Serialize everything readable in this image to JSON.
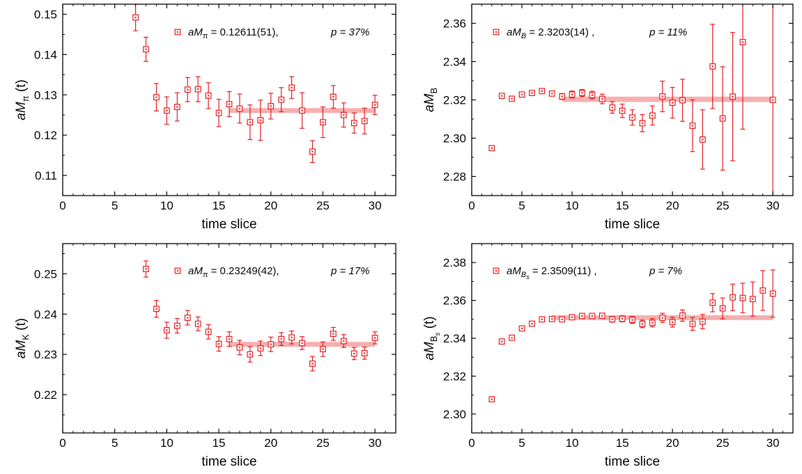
{
  "colors": {
    "points": "#e41a1c",
    "band": "#f4a6a6",
    "axis": "#000000"
  },
  "chart_data": [
    {
      "type": "scatter",
      "xlabel": "time slice",
      "ylabel": {
        "main": "aM",
        "sub": "π",
        "suffix": " (t)"
      },
      "legend": {
        "main": "aM",
        "sub": "π",
        "value": " = 0.12611(51),",
        "p": "p = 37%"
      },
      "xlim": [
        0,
        32
      ],
      "ylim": [
        0.105,
        0.1525
      ],
      "xticks": [
        0,
        5,
        10,
        15,
        20,
        25,
        30
      ],
      "xtick_labels": [
        "0",
        "5",
        "10",
        "15",
        "20",
        "25",
        "30"
      ],
      "yticks": [
        0.11,
        0.12,
        0.13,
        0.14,
        0.15
      ],
      "ytick_labels": [
        "0.11",
        "0.12",
        "0.13",
        "0.14",
        "0.15"
      ],
      "fit": {
        "value": 0.12611,
        "error": 0.00051,
        "xrange": [
          16,
          30
        ]
      },
      "points": [
        {
          "x": 7,
          "y": 0.1492,
          "err": 0.0033
        },
        {
          "x": 8,
          "y": 0.1413,
          "err": 0.003
        },
        {
          "x": 9,
          "y": 0.1294,
          "err": 0.0034
        },
        {
          "x": 10,
          "y": 0.1261,
          "err": 0.0034
        },
        {
          "x": 11,
          "y": 0.127,
          "err": 0.0035
        },
        {
          "x": 12,
          "y": 0.1313,
          "err": 0.003
        },
        {
          "x": 13,
          "y": 0.1314,
          "err": 0.0031
        },
        {
          "x": 14,
          "y": 0.1298,
          "err": 0.0032
        },
        {
          "x": 15,
          "y": 0.1255,
          "err": 0.0034
        },
        {
          "x": 16,
          "y": 0.1277,
          "err": 0.0031
        },
        {
          "x": 17,
          "y": 0.1266,
          "err": 0.0036
        },
        {
          "x": 18,
          "y": 0.1232,
          "err": 0.0043
        },
        {
          "x": 19,
          "y": 0.1237,
          "err": 0.005
        },
        {
          "x": 20,
          "y": 0.1272,
          "err": 0.0032
        },
        {
          "x": 21,
          "y": 0.1288,
          "err": 0.003
        },
        {
          "x": 22,
          "y": 0.1318,
          "err": 0.0027
        },
        {
          "x": 23,
          "y": 0.1261,
          "err": 0.0044
        },
        {
          "x": 24,
          "y": 0.1159,
          "err": 0.0027
        },
        {
          "x": 25,
          "y": 0.1232,
          "err": 0.0038
        },
        {
          "x": 26,
          "y": 0.1295,
          "err": 0.0028
        },
        {
          "x": 27,
          "y": 0.125,
          "err": 0.003
        },
        {
          "x": 28,
          "y": 0.123,
          "err": 0.0025
        },
        {
          "x": 29,
          "y": 0.1235,
          "err": 0.0032
        },
        {
          "x": 30,
          "y": 0.1275,
          "err": 0.0024
        }
      ]
    },
    {
      "type": "scatter",
      "xlabel": "time slice",
      "ylabel": {
        "main": "aM",
        "sub": "B",
        "suffix": ""
      },
      "legend": {
        "main": "aM",
        "sub": "B",
        "value": " = 2.3203(14) ,",
        "p": "p = 11%"
      },
      "xlim": [
        0,
        32
      ],
      "ylim": [
        2.27,
        2.37
      ],
      "xticks": [
        0,
        5,
        10,
        15,
        20,
        25,
        30
      ],
      "xtick_labels": [
        "0",
        "5",
        "10",
        "15",
        "20",
        "25",
        "30"
      ],
      "yticks": [
        2.28,
        2.3,
        2.32,
        2.34,
        2.36
      ],
      "ytick_labels": [
        "2.28",
        "2.30",
        "2.32",
        "2.34",
        "2.36"
      ],
      "fit": {
        "value": 2.3203,
        "error": 0.0014,
        "xrange": [
          9,
          30
        ]
      },
      "points": [
        {
          "x": 2,
          "y": 2.2948,
          "err": 0.0008
        },
        {
          "x": 3,
          "y": 2.3221,
          "err": 0.001
        },
        {
          "x": 4,
          "y": 2.3206,
          "err": 0.001
        },
        {
          "x": 5,
          "y": 2.3228,
          "err": 0.001
        },
        {
          "x": 6,
          "y": 2.3236,
          "err": 0.001
        },
        {
          "x": 7,
          "y": 2.3246,
          "err": 0.0012
        },
        {
          "x": 8,
          "y": 2.3233,
          "err": 0.0012
        },
        {
          "x": 9,
          "y": 2.3218,
          "err": 0.0015
        },
        {
          "x": 10,
          "y": 2.3228,
          "err": 0.0018
        },
        {
          "x": 11,
          "y": 2.3236,
          "err": 0.0018
        },
        {
          "x": 12,
          "y": 2.3225,
          "err": 0.002
        },
        {
          "x": 13,
          "y": 2.3205,
          "err": 0.0025
        },
        {
          "x": 14,
          "y": 2.316,
          "err": 0.003
        },
        {
          "x": 15,
          "y": 2.3143,
          "err": 0.0035
        },
        {
          "x": 16,
          "y": 2.3108,
          "err": 0.004
        },
        {
          "x": 17,
          "y": 2.3078,
          "err": 0.0045
        },
        {
          "x": 18,
          "y": 2.3118,
          "err": 0.005
        },
        {
          "x": 19,
          "y": 2.3218,
          "err": 0.008
        },
        {
          "x": 20,
          "y": 2.3185,
          "err": 0.008
        },
        {
          "x": 21,
          "y": 2.3198,
          "err": 0.011
        },
        {
          "x": 22,
          "y": 2.3065,
          "err": 0.0135
        },
        {
          "x": 23,
          "y": 2.2993,
          "err": 0.0155
        },
        {
          "x": 24,
          "y": 2.3375,
          "err": 0.022
        },
        {
          "x": 25,
          "y": 2.3103,
          "err": 0.027
        },
        {
          "x": 26,
          "y": 2.3217,
          "err": 0.0335
        },
        {
          "x": 27,
          "y": 2.3502,
          "err": 0.0455
        },
        {
          "x": 30,
          "y": 2.32,
          "err": 0.055
        }
      ]
    },
    {
      "type": "scatter",
      "xlabel": "time slice",
      "ylabel": {
        "main": "aM",
        "sub": "K",
        "suffix": " (t)"
      },
      "legend": {
        "main": "aM",
        "sub": "π",
        "value": " = 0.23249(42),",
        "p": "p = 17%"
      },
      "xlim": [
        0,
        32
      ],
      "ylim": [
        0.2105,
        0.2575
      ],
      "xticks": [
        0,
        5,
        10,
        15,
        20,
        25,
        30
      ],
      "xtick_labels": [
        "0",
        "5",
        "10",
        "15",
        "20",
        "25",
        "30"
      ],
      "yticks": [
        0.22,
        0.23,
        0.24,
        0.25
      ],
      "ytick_labels": [
        "0.22",
        "0.23",
        "0.24",
        "0.25"
      ],
      "fit": {
        "value": 0.23249,
        "error": 0.00042,
        "xrange": [
          16,
          30
        ]
      },
      "points": [
        {
          "x": 8,
          "y": 0.2512,
          "err": 0.002
        },
        {
          "x": 9,
          "y": 0.2413,
          "err": 0.0021
        },
        {
          "x": 10,
          "y": 0.236,
          "err": 0.002
        },
        {
          "x": 11,
          "y": 0.2371,
          "err": 0.0018
        },
        {
          "x": 12,
          "y": 0.2391,
          "err": 0.0018
        },
        {
          "x": 13,
          "y": 0.2376,
          "err": 0.0017
        },
        {
          "x": 14,
          "y": 0.2356,
          "err": 0.0018
        },
        {
          "x": 15,
          "y": 0.2326,
          "err": 0.0018
        },
        {
          "x": 16,
          "y": 0.2338,
          "err": 0.0018
        },
        {
          "x": 17,
          "y": 0.2317,
          "err": 0.0018
        },
        {
          "x": 18,
          "y": 0.23,
          "err": 0.0019
        },
        {
          "x": 19,
          "y": 0.2315,
          "err": 0.0018
        },
        {
          "x": 20,
          "y": 0.2325,
          "err": 0.0018
        },
        {
          "x": 21,
          "y": 0.2338,
          "err": 0.0016
        },
        {
          "x": 22,
          "y": 0.2342,
          "err": 0.0016
        },
        {
          "x": 23,
          "y": 0.2328,
          "err": 0.0016
        },
        {
          "x": 24,
          "y": 0.2277,
          "err": 0.0018
        },
        {
          "x": 25,
          "y": 0.2313,
          "err": 0.0018
        },
        {
          "x": 26,
          "y": 0.2351,
          "err": 0.0016
        },
        {
          "x": 27,
          "y": 0.2333,
          "err": 0.0016
        },
        {
          "x": 28,
          "y": 0.2302,
          "err": 0.0015
        },
        {
          "x": 29,
          "y": 0.2303,
          "err": 0.0015
        },
        {
          "x": 30,
          "y": 0.2341,
          "err": 0.0015
        }
      ]
    },
    {
      "type": "scatter",
      "xlabel": "time slice",
      "ylabel": {
        "main": "aM",
        "sub": "B",
        "subsub": "s",
        "suffix": " (t)"
      },
      "legend": {
        "main": "aM",
        "sub": "B",
        "subsub": "s",
        "value": " = 2.3509(11) ,",
        "p": "p =  7%"
      },
      "xlim": [
        0,
        32
      ],
      "ylim": [
        2.29,
        2.39
      ],
      "xticks": [
        0,
        5,
        10,
        15,
        20,
        25,
        30
      ],
      "xtick_labels": [
        "0",
        "5",
        "10",
        "15",
        "20",
        "25",
        "30"
      ],
      "yticks": [
        2.3,
        2.32,
        2.34,
        2.36,
        2.38
      ],
      "ytick_labels": [
        "2.30",
        "2.32",
        "2.34",
        "2.36",
        "2.38"
      ],
      "fit": {
        "value": 2.3509,
        "error": 0.0011,
        "xrange": [
          8,
          30
        ]
      },
      "points": [
        {
          "x": 2,
          "y": 2.3078,
          "err": 0.0006
        },
        {
          "x": 3,
          "y": 2.3383,
          "err": 0.0006
        },
        {
          "x": 4,
          "y": 2.3403,
          "err": 0.0007
        },
        {
          "x": 5,
          "y": 2.3452,
          "err": 0.0008
        },
        {
          "x": 6,
          "y": 2.3477,
          "err": 0.0008
        },
        {
          "x": 7,
          "y": 2.35,
          "err": 0.0009
        },
        {
          "x": 8,
          "y": 2.3502,
          "err": 0.001
        },
        {
          "x": 9,
          "y": 2.35,
          "err": 0.001
        },
        {
          "x": 10,
          "y": 2.3511,
          "err": 0.0011
        },
        {
          "x": 11,
          "y": 2.3518,
          "err": 0.0011
        },
        {
          "x": 12,
          "y": 2.3518,
          "err": 0.0012
        },
        {
          "x": 13,
          "y": 2.3519,
          "err": 0.0013
        },
        {
          "x": 14,
          "y": 2.35,
          "err": 0.0015
        },
        {
          "x": 15,
          "y": 2.3503,
          "err": 0.0016
        },
        {
          "x": 16,
          "y": 2.3497,
          "err": 0.0018
        },
        {
          "x": 17,
          "y": 2.3476,
          "err": 0.002
        },
        {
          "x": 18,
          "y": 2.3482,
          "err": 0.0022
        },
        {
          "x": 19,
          "y": 2.3508,
          "err": 0.0024
        },
        {
          "x": 20,
          "y": 2.3485,
          "err": 0.0026
        },
        {
          "x": 21,
          "y": 2.352,
          "err": 0.003
        },
        {
          "x": 22,
          "y": 2.3476,
          "err": 0.0034
        },
        {
          "x": 23,
          "y": 2.3488,
          "err": 0.0038
        },
        {
          "x": 24,
          "y": 2.3588,
          "err": 0.0048
        },
        {
          "x": 25,
          "y": 2.3558,
          "err": 0.0055
        },
        {
          "x": 26,
          "y": 2.3616,
          "err": 0.007
        },
        {
          "x": 27,
          "y": 2.3613,
          "err": 0.0078
        },
        {
          "x": 28,
          "y": 2.3607,
          "err": 0.009
        },
        {
          "x": 29,
          "y": 2.3652,
          "err": 0.0105
        },
        {
          "x": 30,
          "y": 2.3636,
          "err": 0.0125
        }
      ]
    }
  ]
}
